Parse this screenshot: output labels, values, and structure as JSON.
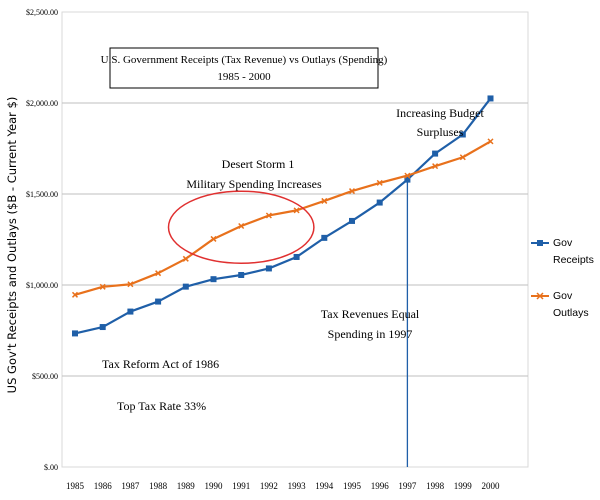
{
  "chart_data": {
    "type": "line",
    "title_line1": "U.S. Government Receipts (Tax Revenue) vs Outlays (Spending)",
    "title_line2": "1985 - 2000",
    "ylabel": "US Gov't Receipts and Outlays ($B - Current Year $)",
    "xlabel": "",
    "ylim": [
      0,
      2500
    ],
    "ytick_values": [
      0,
      500,
      1000,
      1500,
      2000,
      2500
    ],
    "ytick_labels": [
      "$.00",
      "$500.00",
      "$1,000.00",
      "$1,500.00",
      "$2,000.00",
      "$2,500.00"
    ],
    "categories": [
      "1985",
      "1986",
      "1987",
      "1988",
      "1989",
      "1990",
      "1991",
      "1992",
      "1993",
      "1994",
      "1995",
      "1996",
      "1997",
      "1998",
      "1999",
      "2000"
    ],
    "series": [
      {
        "name": "Gov Receipts",
        "legend_line1": "Gov",
        "legend_line2": "Receipts",
        "color": "#1f5fa8",
        "marker": "square",
        "values": [
          734,
          769,
          854,
          909,
          991,
          1032,
          1055,
          1091,
          1154,
          1259,
          1352,
          1453,
          1579,
          1722,
          1827,
          2025
        ]
      },
      {
        "name": "Gov Outlays",
        "legend_line1": "Gov",
        "legend_line2": "Outlays",
        "color": "#e8711c",
        "marker": "cross",
        "values": [
          946,
          990,
          1004,
          1065,
          1144,
          1253,
          1324,
          1382,
          1410,
          1462,
          1516,
          1561,
          1601,
          1653,
          1702,
          1789
        ]
      }
    ],
    "annotations": {
      "desert_storm_line1": "Desert Storm 1",
      "desert_storm_line2": "Military Spending Increases",
      "surplus_line1": "Increasing Budget",
      "surplus_line2": "Surpluses",
      "equal_line1": "Tax Revenues Equal",
      "equal_line2": "Spending in 1997",
      "tax_reform": "Tax Reform Act of 1986",
      "top_rate": "Top Tax Rate 33%"
    },
    "highlight_circle_years": [
      "1990",
      "1991",
      "1992"
    ],
    "crossover_year": "1997",
    "circle_color": "#e03030",
    "grid": true,
    "legend_position": "right"
  }
}
